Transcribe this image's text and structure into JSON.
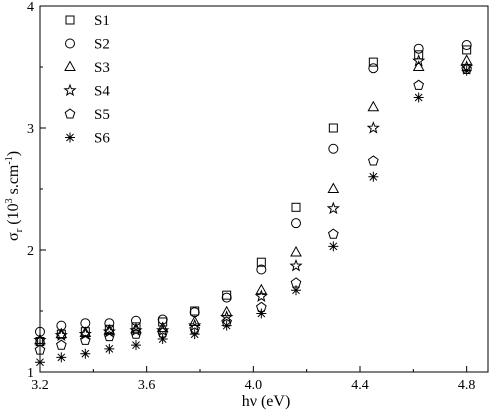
{
  "chart_data": {
    "type": "scatter",
    "xlim": [
      3.2,
      4.88
    ],
    "ylim": [
      1,
      4
    ],
    "xticks": [
      "3.2",
      "3.6",
      "4.0",
      "4.4",
      "4.8"
    ],
    "yticks": [
      "1",
      "2",
      "3",
      "4"
    ],
    "xlabel": "hν (eV)",
    "ylabel": {
      "symbol": "σ",
      "sub": "r",
      "unit_open": " (10",
      "exp": "3",
      "unit_mid": " s.cm",
      "exp2": "-1",
      "unit_close": ")"
    },
    "grid": false,
    "legend": "top-left",
    "x": [
      3.2,
      3.28,
      3.37,
      3.46,
      3.56,
      3.66,
      3.78,
      3.9,
      4.03,
      4.16,
      4.3,
      4.45,
      4.62,
      4.8
    ],
    "series": [
      {
        "name": "S1",
        "marker": "square",
        "values": [
          1.25,
          1.31,
          1.33,
          1.35,
          1.37,
          1.41,
          1.5,
          1.63,
          1.9,
          2.35,
          3.0,
          3.54,
          3.6,
          3.64
        ]
      },
      {
        "name": "S2",
        "marker": "circle",
        "values": [
          1.33,
          1.38,
          1.4,
          1.4,
          1.42,
          1.43,
          1.49,
          1.61,
          1.84,
          2.22,
          2.83,
          3.49,
          3.65,
          3.68
        ]
      },
      {
        "name": "S3",
        "marker": "triangle",
        "values": [
          1.26,
          1.31,
          1.32,
          1.34,
          1.35,
          1.36,
          1.41,
          1.49,
          1.67,
          1.98,
          2.5,
          3.17,
          3.5,
          3.55
        ]
      },
      {
        "name": "S4",
        "marker": "star",
        "values": [
          1.26,
          1.3,
          1.31,
          1.33,
          1.34,
          1.34,
          1.38,
          1.45,
          1.62,
          1.87,
          2.34,
          3.0,
          3.55,
          3.5
        ]
      },
      {
        "name": "S5",
        "marker": "pentagon",
        "values": [
          1.18,
          1.22,
          1.26,
          1.29,
          1.31,
          1.32,
          1.35,
          1.41,
          1.53,
          1.73,
          2.13,
          2.73,
          3.35,
          3.48
        ]
      },
      {
        "name": "S6",
        "marker": "asterisk",
        "values": [
          1.08,
          1.12,
          1.15,
          1.19,
          1.22,
          1.27,
          1.31,
          1.38,
          1.48,
          1.67,
          2.03,
          2.6,
          3.25,
          3.47
        ]
      }
    ]
  }
}
